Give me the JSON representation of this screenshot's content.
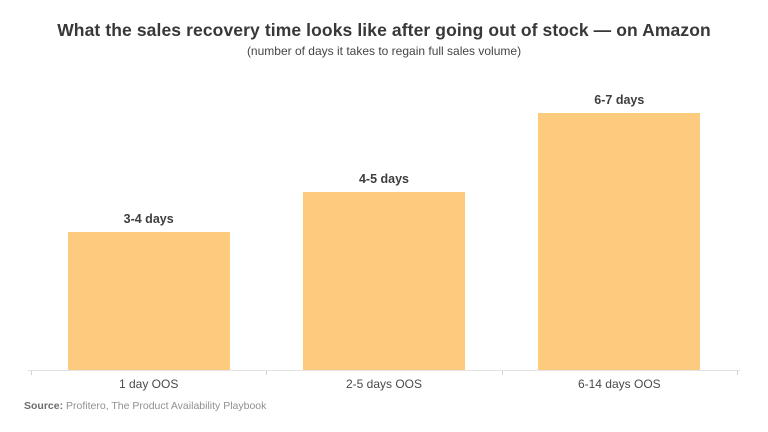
{
  "header": {
    "title": "What the sales recovery time looks like after going out of stock — on Amazon",
    "subtitle": "(number of days it takes to regain full sales volume)"
  },
  "chart_data": {
    "type": "bar",
    "title": "What the sales recovery time looks like after going out of stock — on Amazon",
    "subtitle": "(number of days it takes to regain full sales volume)",
    "categories": [
      "1 day OOS",
      "2-5 days OOS",
      "6-14 days OOS"
    ],
    "values": [
      3.5,
      4.5,
      6.5
    ],
    "value_labels": [
      "3-4 days",
      "4-5 days",
      "6-7 days"
    ],
    "xlabel": "",
    "ylabel": "",
    "ylim": [
      0,
      6.5
    ],
    "grid": false,
    "legend": false,
    "bar_color": "#FCCB7D",
    "axis_line_color": "#E2E2E2",
    "tick_color": "#D2D2D2",
    "label_color": "#3D3D3D"
  },
  "footer": {
    "source_label": "Source:",
    "source_text": " Profitero, The Product Availability Playbook"
  }
}
